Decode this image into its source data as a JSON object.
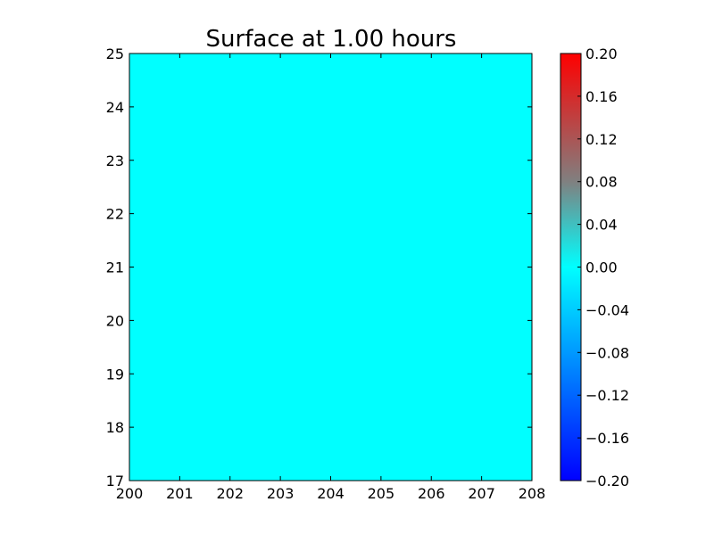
{
  "chart_data": {
    "type": "heatmap",
    "title": "Surface at 1.00 hours",
    "xlabel": "",
    "ylabel": "",
    "xlim": [
      200,
      208
    ],
    "ylim": [
      17,
      25
    ],
    "x_ticks": [
      "200",
      "201",
      "202",
      "203",
      "204",
      "205",
      "206",
      "207",
      "208"
    ],
    "y_ticks": [
      "17",
      "18",
      "19",
      "20",
      "21",
      "22",
      "23",
      "24",
      "25"
    ],
    "surface_value": 0.0,
    "surface_color": "#00ffff",
    "colorbar": {
      "range": [
        -0.2,
        0.2
      ],
      "ticks": [
        "0.20",
        "0.16",
        "0.12",
        "0.08",
        "0.04",
        "0.00",
        "−0.04",
        "−0.08",
        "−0.12",
        "−0.16",
        "−0.20"
      ],
      "colors": {
        "-0.20": "#0000ff",
        "0.00": "#00ffff",
        "0.08": "#808080",
        "0.20": "#ff0000"
      }
    },
    "grid": false
  }
}
